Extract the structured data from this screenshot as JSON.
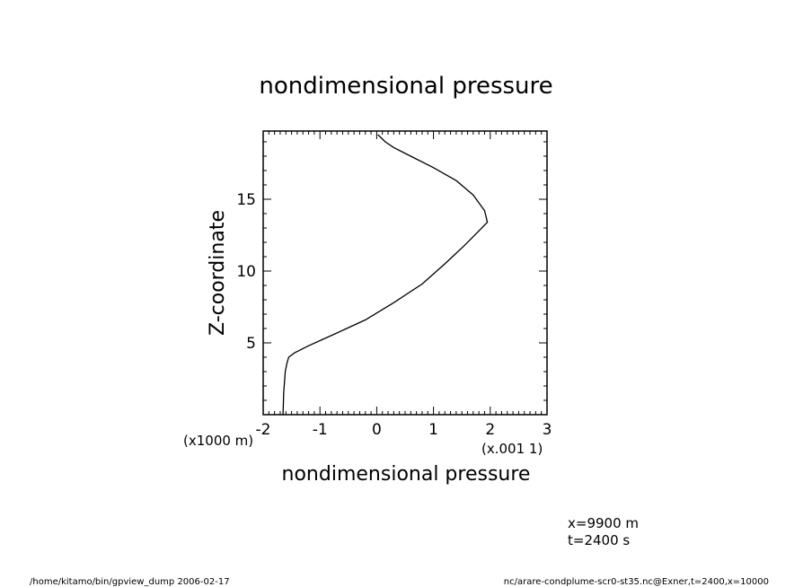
{
  "chart_data": {
    "type": "line",
    "title": "nondimensional pressure",
    "xlabel": "nondimensional pressure",
    "ylabel": "Z-coordinate",
    "x_unit_note": "(x.001 1)",
    "y_unit_note": "(x1000 m)",
    "xlim": [
      -2,
      3
    ],
    "ylim": [
      0,
      19.75
    ],
    "x_ticks": [
      "-2",
      "-1",
      "0",
      "1",
      "2",
      "3"
    ],
    "y_ticks": [
      "5",
      "10",
      "15"
    ],
    "grid": false,
    "series": [
      {
        "x": [
          -1.65,
          -1.64,
          -1.61,
          -1.58,
          -1.55,
          -1.45,
          -1.2,
          -0.75,
          -0.2,
          0.3,
          0.8,
          1.2,
          1.55,
          1.8,
          1.95,
          1.9,
          1.7,
          1.4,
          1.0,
          0.6,
          0.3,
          0.15,
          0.02
        ],
        "y": [
          0.0,
          1.5,
          3.0,
          3.6,
          4.0,
          4.3,
          4.8,
          5.6,
          6.6,
          7.8,
          9.1,
          10.5,
          11.8,
          12.8,
          13.4,
          14.2,
          15.3,
          16.3,
          17.2,
          18.0,
          18.6,
          19.0,
          19.5
        ]
      }
    ]
  },
  "annotations": {
    "x_value": "x=9900  m",
    "t_value": "t=2400  s"
  },
  "footer": {
    "left": "/home/kitamo/bin/gpview_dump  2006-02-17",
    "right": "nc/arare-condplume-scr0-st35.nc@Exner,t=2400,x=10000"
  }
}
